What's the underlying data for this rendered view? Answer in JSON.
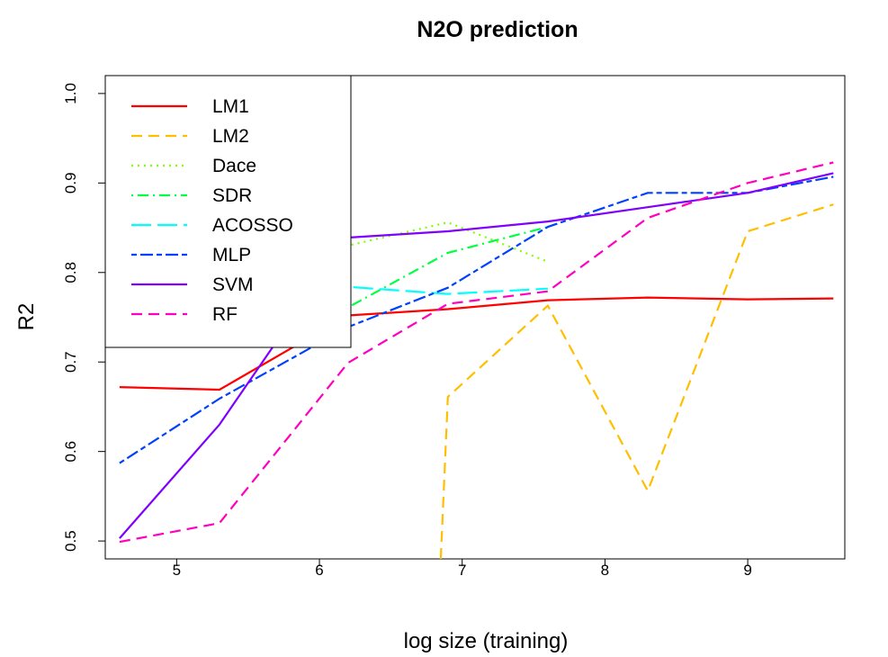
{
  "chart_data": {
    "type": "line",
    "title": "N2O prediction",
    "xlabel": "log size (training)",
    "ylabel": "R2",
    "xlim": [
      4.5,
      9.68
    ],
    "ylim": [
      0.48,
      1.02
    ],
    "xticks": [
      5,
      6,
      7,
      8,
      9
    ],
    "yticks": [
      0.5,
      0.6,
      0.7,
      0.8,
      0.9,
      1.0
    ],
    "ytick_labels": [
      "0.5",
      "0.6",
      "0.7",
      "0.8",
      "0.9",
      "1.0"
    ],
    "grid": false,
    "legend_position": "top-left",
    "series": [
      {
        "name": "LM1",
        "color": "#ff0000",
        "dash": "solid",
        "x": [
          4.6,
          5.3,
          6.2,
          6.9,
          7.6,
          8.3,
          9.0,
          9.6
        ],
        "y": [
          0.672,
          0.669,
          0.752,
          0.759,
          0.769,
          0.772,
          0.77,
          0.771
        ]
      },
      {
        "name": "LM2",
        "color": "#ffbf00",
        "dash": "dashed",
        "x": [
          6.85,
          6.9,
          7.6,
          8.3,
          9.0,
          9.6
        ],
        "y": [
          0.48,
          0.661,
          0.763,
          0.556,
          0.846,
          0.876
        ]
      },
      {
        "name": "Dace",
        "color": "#80ff00",
        "dash": "dotted",
        "x": [
          4.6,
          5.3,
          6.2,
          6.9,
          7.6
        ],
        "y": [
          0.741,
          0.783,
          0.83,
          0.856,
          0.812
        ]
      },
      {
        "name": "SDR",
        "color": "#00ff40",
        "dash": "dotdash",
        "x": [
          4.6,
          5.3,
          6.2,
          6.9,
          7.6
        ],
        "y": [
          0.782,
          0.811,
          0.761,
          0.822,
          0.851
        ]
      },
      {
        "name": "ACOSSO",
        "color": "#00ffff",
        "dash": "longdash",
        "x": [
          4.6,
          5.3,
          6.2,
          6.9,
          7.6
        ],
        "y": [
          0.804,
          0.789,
          0.784,
          0.776,
          0.782
        ]
      },
      {
        "name": "MLP",
        "color": "#0040ff",
        "dash": "twodash",
        "x": [
          4.6,
          5.3,
          6.2,
          6.9,
          7.6,
          8.3,
          9.0,
          9.6
        ],
        "y": [
          0.587,
          0.659,
          0.739,
          0.783,
          0.851,
          0.889,
          0.889,
          0.907
        ]
      },
      {
        "name": "SVM",
        "color": "#8000ff",
        "dash": "solid",
        "x": [
          4.6,
          5.3,
          6.2,
          6.9,
          7.6,
          8.3,
          9.0,
          9.6
        ],
        "y": [
          0.503,
          0.63,
          0.839,
          0.846,
          0.857,
          0.873,
          0.889,
          0.911
        ]
      },
      {
        "name": "RF",
        "color": "#ff00bf",
        "dash": "dashed",
        "x": [
          4.6,
          5.3,
          6.2,
          6.9,
          7.6,
          8.3,
          9.0,
          9.6
        ],
        "y": [
          0.499,
          0.52,
          0.699,
          0.765,
          0.779,
          0.861,
          0.9,
          0.923
        ]
      }
    ]
  }
}
